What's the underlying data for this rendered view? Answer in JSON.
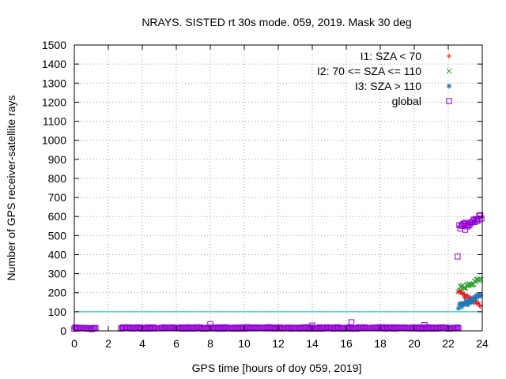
{
  "chart_data": {
    "type": "scatter",
    "title": "NRAYS. SISTED rt 30s mode. 059, 2019. Mask 30 deg",
    "xlabel": "GPS time [hours of doy 059, 2019]",
    "ylabel": "Number of GPS receiver-satellite rays",
    "xlim": [
      0,
      24
    ],
    "ylim": [
      0,
      1500
    ],
    "xticks": [
      "0",
      "2",
      "4",
      "6",
      "8",
      "10",
      "12",
      "14",
      "16",
      "18",
      "20",
      "22",
      "24"
    ],
    "yticks": [
      "0",
      "100",
      "200",
      "300",
      "400",
      "500",
      "600",
      "700",
      "800",
      "900",
      "1000",
      "1100",
      "1200",
      "1300",
      "1400",
      "1500"
    ],
    "grid": true,
    "legend_position": "top-right",
    "reference_line": {
      "y": 100,
      "color": "#00c0c0"
    },
    "series": [
      {
        "name": "I1: SZA < 70",
        "marker": "+",
        "color": "#e41a1c",
        "segments": [
          {
            "x_start": 22.6,
            "x_end": 22.95,
            "y_start": 200,
            "y_end": 185
          },
          {
            "x_start": 22.95,
            "x_end": 23.4,
            "y_start": 185,
            "y_end": 170
          },
          {
            "x_start": 23.4,
            "x_end": 23.9,
            "y_start": 165,
            "y_end": 140
          }
        ]
      },
      {
        "name": "I2: 70 <= SZA <= 110",
        "marker": "x",
        "color": "#2ca02c",
        "segments": [
          {
            "x_start": 22.6,
            "x_end": 23.2,
            "y_start": 215,
            "y_end": 245
          },
          {
            "x_start": 23.2,
            "x_end": 23.9,
            "y_start": 245,
            "y_end": 270
          }
        ]
      },
      {
        "name": "I3: SZA > 110",
        "marker": "*",
        "color": "#1f78b4",
        "segments": [
          {
            "x_start": 22.6,
            "x_end": 23.2,
            "y_start": 130,
            "y_end": 150
          },
          {
            "x_start": 23.2,
            "x_end": 23.9,
            "y_start": 150,
            "y_end": 190
          }
        ]
      },
      {
        "name": "global",
        "marker": "square",
        "color": "#9400d3",
        "segments": [
          {
            "x_start": 0.0,
            "x_end": 1.25,
            "y_start": 15,
            "y_end": 12
          },
          {
            "x_start": 2.75,
            "x_end": 22.6,
            "y_start": 15,
            "y_end": 15
          },
          {
            "x_start": 22.65,
            "x_end": 23.0,
            "y_start": 545,
            "y_end": 560
          },
          {
            "x_start": 23.0,
            "x_end": 23.5,
            "y_start": 540,
            "y_end": 570
          },
          {
            "x_start": 23.5,
            "x_end": 23.95,
            "y_start": 575,
            "y_end": 600
          }
        ],
        "outliers": [
          {
            "x": 22.55,
            "y": 390
          },
          {
            "x": 8.0,
            "y": 35
          },
          {
            "x": 16.3,
            "y": 45
          },
          {
            "x": 14.0,
            "y": 28
          },
          {
            "x": 20.6,
            "y": 30
          }
        ]
      }
    ]
  }
}
